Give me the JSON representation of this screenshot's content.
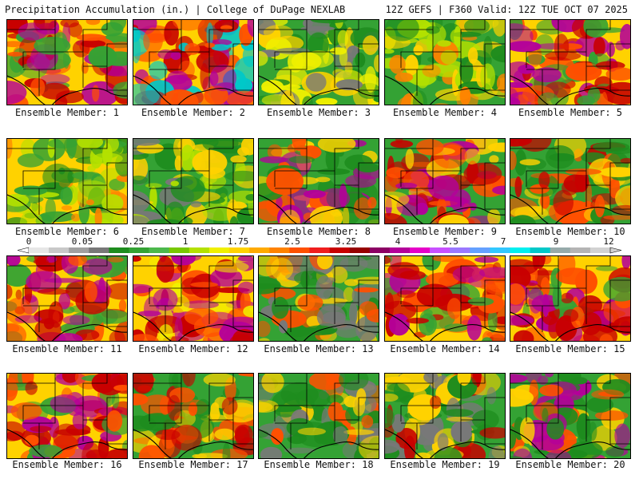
{
  "header": {
    "title": "Precipitation Accumulation (in.) | College of DuPage NEXLAB",
    "run_info": "12Z GEFS | F360 Valid: 12Z TUE OCT 07 2025"
  },
  "members": [
    "Ensemble Member: 1",
    "Ensemble Member: 2",
    "Ensemble Member: 3",
    "Ensemble Member: 4",
    "Ensemble Member: 5",
    "Ensemble Member: 6",
    "Ensemble Member: 7",
    "Ensemble Member: 8",
    "Ensemble Member: 9",
    "Ensemble Member: 10",
    "Ensemble Member: 11",
    "Ensemble Member: 12",
    "Ensemble Member: 13",
    "Ensemble Member: 14",
    "Ensemble Member: 15",
    "Ensemble Member: 16",
    "Ensemble Member: 17",
    "Ensemble Member: 18",
    "Ensemble Member: 19",
    "Ensemble Member: 20"
  ],
  "colorbar": {
    "labels": [
      "0",
      "0.05",
      "0.25",
      "1",
      "1.75",
      "2.5",
      "3.25",
      "4",
      "5.5",
      "7",
      "9",
      "12"
    ],
    "colors": [
      "#e6e6e6",
      "#c8c8c8",
      "#a0a0a0",
      "#787878",
      "#1e8c1e",
      "#34a234",
      "#4cb84c",
      "#78c800",
      "#b4e100",
      "#f0f000",
      "#ffd200",
      "#ffaa00",
      "#ff8200",
      "#ff5000",
      "#f01e1e",
      "#c80000",
      "#960000",
      "#8c0064",
      "#b4009a",
      "#e600c8",
      "#c850ff",
      "#9a78ff",
      "#64a0ff",
      "#32c8ff",
      "#00f0f0",
      "#00c8c8",
      "#96aaaa",
      "#b4b4b4",
      "#d2d2d2"
    ]
  },
  "panel_palettes": [
    [
      "#ffd200",
      "#34a234",
      "#ff5000",
      "#c80000",
      "#b4009a"
    ],
    [
      "#ffd200",
      "#ff5000",
      "#c80000",
      "#b4009a",
      "#00c8c8"
    ],
    [
      "#34a234",
      "#1e8c1e",
      "#787878",
      "#ffd200",
      "#f0f000"
    ],
    [
      "#34a234",
      "#1e8c1e",
      "#ffd200",
      "#b4e100",
      "#ff8200"
    ],
    [
      "#ffd200",
      "#ff5000",
      "#34a234",
      "#c80000",
      "#b4009a"
    ],
    [
      "#ffd200",
      "#34a234",
      "#b4e100",
      "#ff8200",
      "#1e8c1e"
    ],
    [
      "#34a234",
      "#1e8c1e",
      "#b4e100",
      "#ffd200",
      "#787878"
    ],
    [
      "#34a234",
      "#1e8c1e",
      "#ff5000",
      "#b4009a",
      "#ffd200"
    ],
    [
      "#34a234",
      "#ffd200",
      "#ff5000",
      "#c80000",
      "#b4009a"
    ],
    [
      "#34a234",
      "#1e8c1e",
      "#ffd200",
      "#c80000",
      "#ff5000"
    ],
    [
      "#ffd200",
      "#ff5000",
      "#c80000",
      "#b4009a",
      "#34a234"
    ],
    [
      "#ffd200",
      "#ff5000",
      "#c80000",
      "#b4009a",
      "#f0f000"
    ],
    [
      "#34a234",
      "#787878",
      "#1e8c1e",
      "#ffd200",
      "#ff5000"
    ],
    [
      "#ffd200",
      "#34a234",
      "#ff5000",
      "#c80000",
      "#b4009a"
    ],
    [
      "#ffd200",
      "#ff5000",
      "#c80000",
      "#34a234",
      "#b4009a"
    ],
    [
      "#ffd200",
      "#ff5000",
      "#c80000",
      "#b4009a",
      "#34a234"
    ],
    [
      "#34a234",
      "#ffd200",
      "#ff5000",
      "#c80000",
      "#1e8c1e"
    ],
    [
      "#34a234",
      "#787878",
      "#1e8c1e",
      "#ffd200",
      "#ff5000"
    ],
    [
      "#34a234",
      "#787878",
      "#1e8c1e",
      "#ffd200",
      "#c80000"
    ],
    [
      "#34a234",
      "#1e8c1e",
      "#ffd200",
      "#ff5000",
      "#b4009a"
    ]
  ]
}
